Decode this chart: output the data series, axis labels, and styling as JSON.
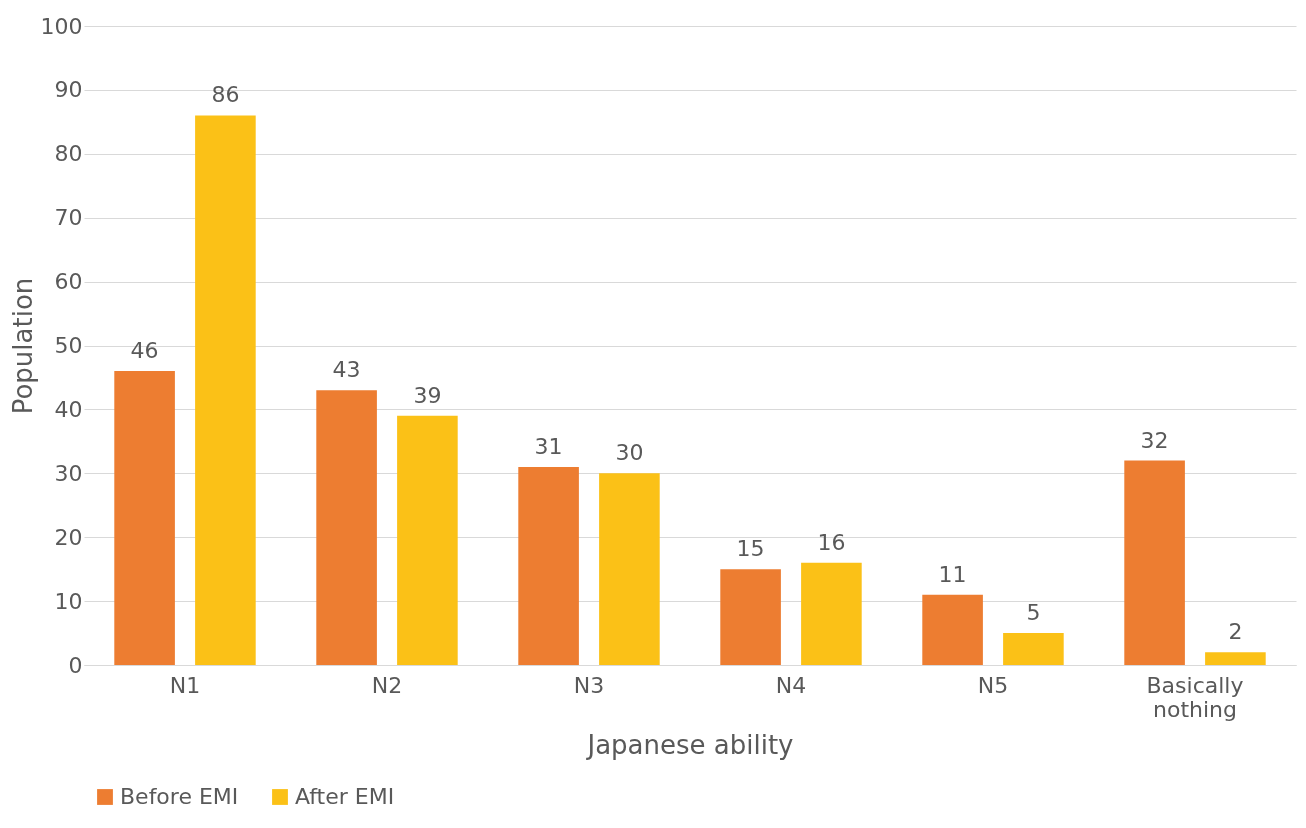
{
  "chart_data": {
    "type": "bar",
    "xlabel": "Japanese ability",
    "ylabel": "Population",
    "categories": [
      "N1",
      "N2",
      "N3",
      "N4",
      "N5",
      "Basically nothing"
    ],
    "series": [
      {
        "name": "Before EMI",
        "color": "#ed7d31",
        "values": [
          46,
          43,
          31,
          15,
          11,
          32
        ]
      },
      {
        "name": "After EMI",
        "color": "#fbc117",
        "values": [
          86,
          39,
          30,
          16,
          5,
          2
        ]
      }
    ],
    "ylim": [
      0,
      100
    ],
    "yticks": [
      0,
      10,
      20,
      30,
      40,
      50,
      60,
      70,
      80,
      90,
      100
    ],
    "grid": "y",
    "legend": "bottom",
    "data_labels": true
  }
}
